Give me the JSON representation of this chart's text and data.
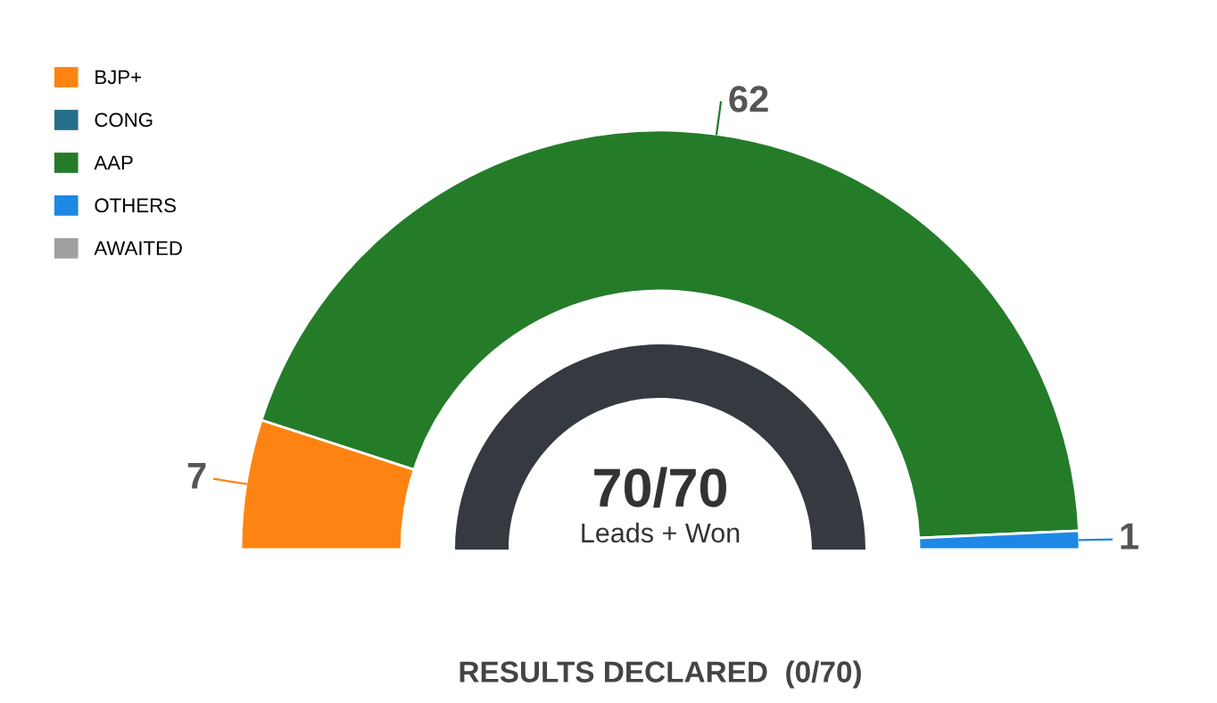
{
  "chart_data": {
    "type": "donut",
    "categories": [
      "BJP+",
      "CONG",
      "AAP",
      "OTHERS",
      "AWAITED"
    ],
    "values": [
      7,
      0,
      62,
      1,
      0
    ],
    "colors": [
      "#fd8412",
      "#266f8a",
      "#247c29",
      "#1e88e5",
      "#a0a0a0"
    ],
    "value_labels": [
      "7",
      null,
      "62",
      "1",
      null
    ],
    "legend": "top left",
    "annotations": [
      "70/70",
      "Leads + Won",
      "RESULTS DECLARED  (0/70)"
    ]
  }
}
